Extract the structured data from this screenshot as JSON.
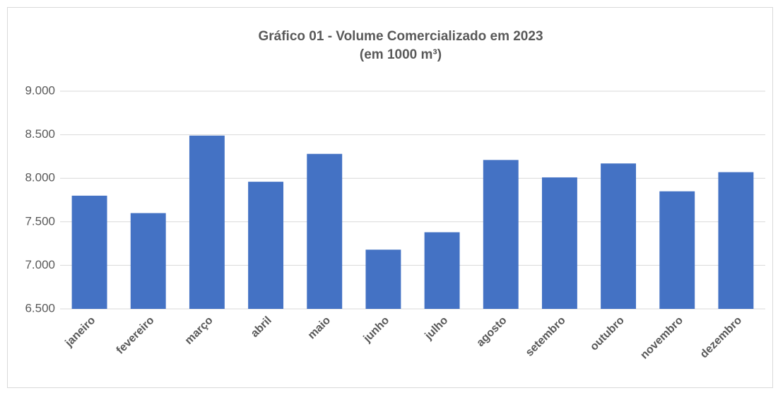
{
  "chart_data": {
    "type": "bar",
    "title": [
      "Gráfico 01 - Volume Comercializado em 2023",
      "(em 1000 m³)"
    ],
    "categories": [
      "janeiro",
      "fevereiro",
      "março",
      "abril",
      "maio",
      "junho",
      "julho",
      "agosto",
      "setembro",
      "outubro",
      "novembro",
      "dezembro"
    ],
    "values": [
      7800,
      7600,
      8490,
      7960,
      8280,
      7180,
      7380,
      8210,
      8010,
      8170,
      7850,
      8070
    ],
    "color": "#4472c4",
    "ylim": [
      6500,
      9000
    ],
    "yticks": [
      {
        "value": 6500,
        "label": "6.500"
      },
      {
        "value": 7000,
        "label": "7.000"
      },
      {
        "value": 7500,
        "label": "7.500"
      },
      {
        "value": 8000,
        "label": "8.000"
      },
      {
        "value": 8500,
        "label": "8.500"
      },
      {
        "value": 9000,
        "label": "9.000"
      }
    ],
    "grid": true
  }
}
